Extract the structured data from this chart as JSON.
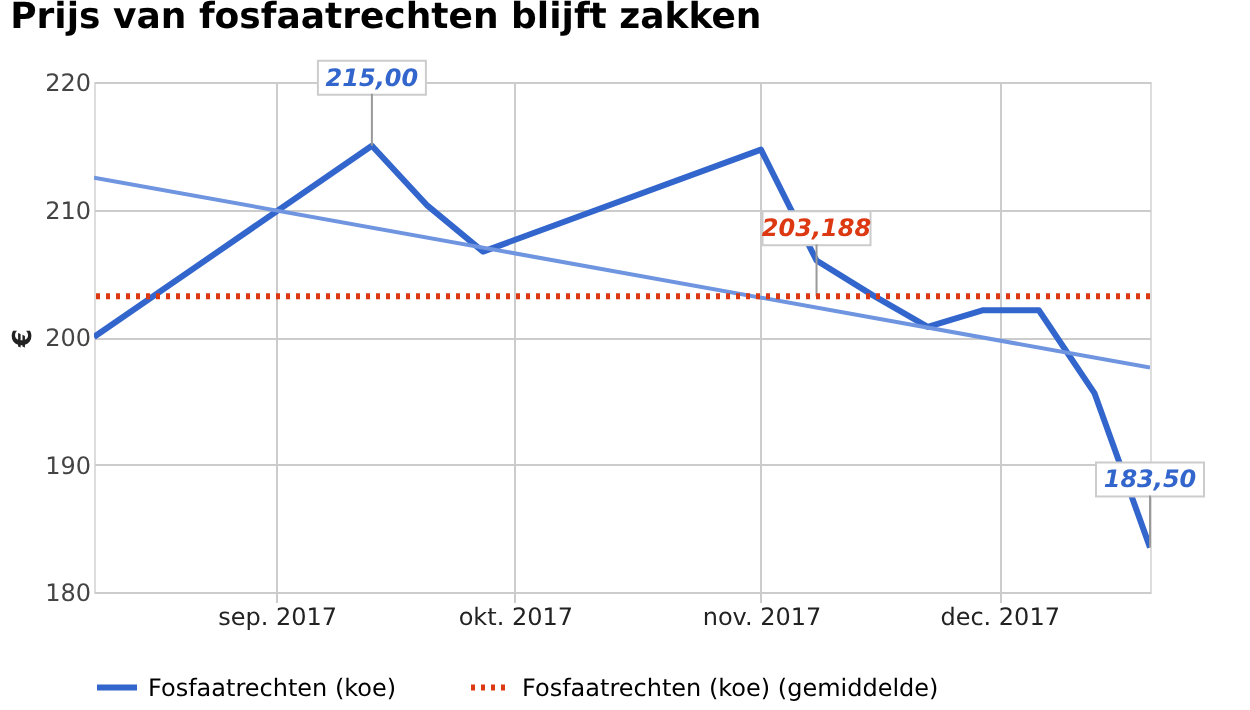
{
  "chart_data": {
    "type": "line",
    "title": "Prijs van fosfaatrechten blijft zakken",
    "ylabel": "€",
    "x": [
      "2017-08-09",
      "2017-09-13",
      "2017-09-20",
      "2017-09-27",
      "2017-11-01",
      "2017-11-08",
      "2017-11-15",
      "2017-11-22",
      "2017-11-29",
      "2017-12-06",
      "2017-12-13",
      "2017-12-20"
    ],
    "series": [
      {
        "name": "Fosfaatrechten (koe)",
        "color": "#3366cc",
        "values": [
          200,
          215,
          210.3,
          206.7,
          214.7,
          206,
          203.3,
          200.8,
          202.1,
          202.1,
          195.6,
          183.5
        ]
      },
      {
        "type": "line",
        "color": "#6f95e0",
        "x": [
          "2017-08-09",
          "2017-12-20"
        ],
        "values": [
          212.5,
          197.6
        ]
      }
    ],
    "ref_lines": [
      {
        "axis": "y",
        "value": 203.188,
        "label": "Fosfaatrechten (koe) (gemiddelde)",
        "color": "#dc3912",
        "line_style": "dotted"
      }
    ],
    "annotations": [
      {
        "text": "215,00",
        "x": "2017-09-13",
        "y": 215
      },
      {
        "text": "203,188",
        "x": "2017-11-08",
        "y": 203.188
      },
      {
        "text": "183,50",
        "x": "2017-12-20",
        "y": 183.5
      }
    ],
    "xlim": [
      "2017-08-09",
      "2017-12-20"
    ],
    "xticks": [
      {
        "value": "2017-09-01",
        "label": "sep. 2017"
      },
      {
        "value": "2017-10-01",
        "label": "okt. 2017"
      },
      {
        "value": "2017-11-01",
        "label": "nov. 2017"
      },
      {
        "value": "2017-12-01",
        "label": "dec. 2017"
      }
    ],
    "ylim": [
      180,
      220
    ],
    "yticks": [
      180,
      190,
      200,
      210,
      220
    ],
    "grid": true,
    "legend": "bottom",
    "line_style": "solid"
  }
}
